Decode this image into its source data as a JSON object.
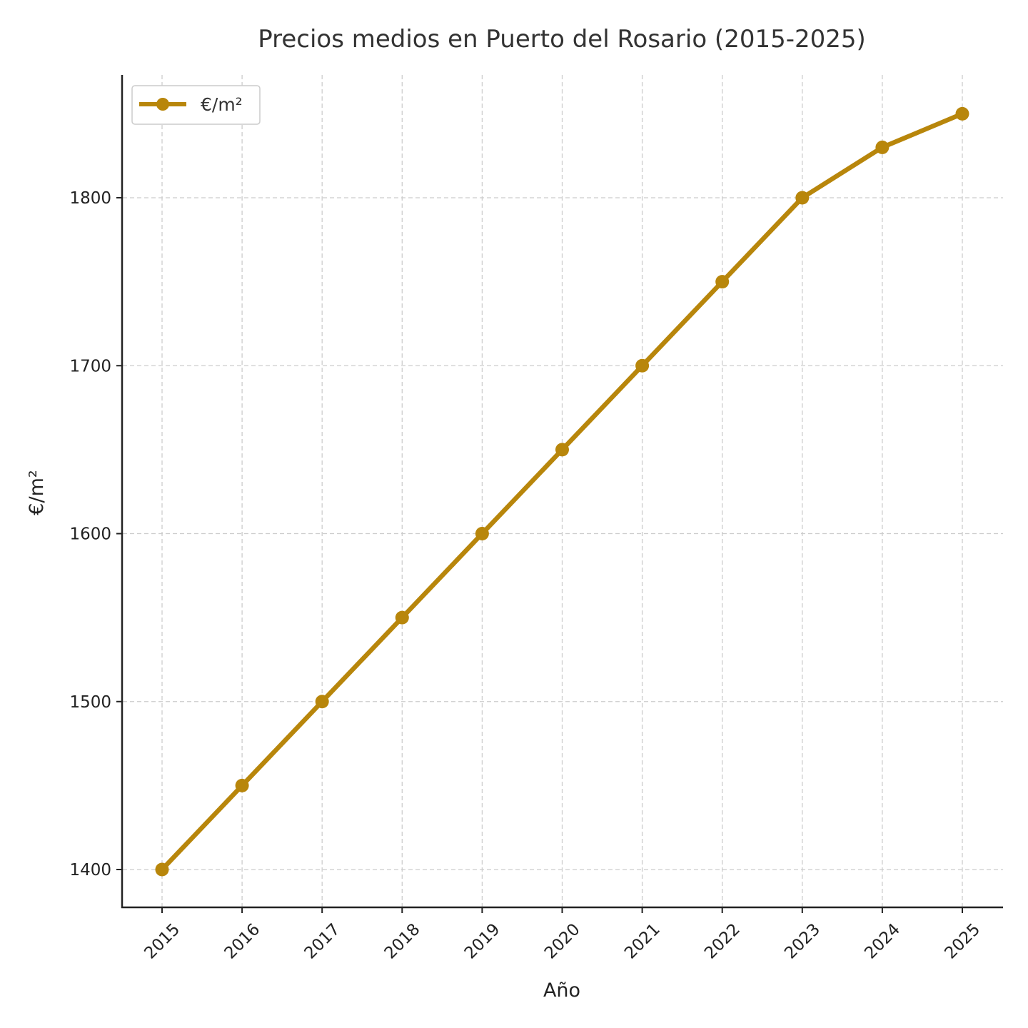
{
  "chart_data": {
    "type": "line",
    "title": "Precios medios en Puerto del Rosario (2015-2025)",
    "xlabel": "Año",
    "ylabel": "€/m²",
    "categories": [
      "2015",
      "2016",
      "2017",
      "2018",
      "2019",
      "2020",
      "2021",
      "2022",
      "2023",
      "2024",
      "2025"
    ],
    "series": [
      {
        "name": "€/m²",
        "values": [
          1400,
          1450,
          1500,
          1550,
          1600,
          1650,
          1700,
          1750,
          1800,
          1830,
          1850
        ],
        "color": "#b8860b"
      }
    ],
    "yticks": [
      1400,
      1500,
      1600,
      1700,
      1800
    ],
    "ylim": [
      1377.5,
      1872.5
    ],
    "grid": true,
    "grid_style": "dashed",
    "legend_position": "top-left",
    "markers": "circle"
  }
}
